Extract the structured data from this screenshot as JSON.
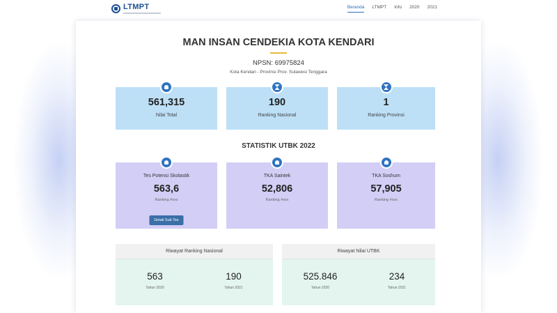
{
  "nav": {
    "logo_text": "LTMPT",
    "links": [
      "Beranda",
      "LTMPT",
      "Info",
      "2020",
      "2021"
    ]
  },
  "school": {
    "name": "MAN INSAN CENDEKIA KOTA KENDARI",
    "npsn": "NPSN: 69975824",
    "location": "Kota Kendari - Provinsi Prov. Sulawesi Tenggara"
  },
  "summary": [
    {
      "value": "561,315",
      "label": "Nilai Total",
      "icon": "user-icon"
    },
    {
      "value": "190",
      "label": "Ranking Nasional",
      "icon": "hourglass-icon"
    },
    {
      "value": "1",
      "label": "Ranking Provinsi",
      "icon": "hourglass-icon"
    }
  ],
  "utbk": {
    "title": "STATISTIK UTBK 2022",
    "cards": [
      {
        "title": "Tes Potensi Skolastik",
        "value": "563,6",
        "sub": "Ranking #xxx",
        "icon": "user-icon"
      },
      {
        "title": "TKA Saintek",
        "value": "52,806",
        "sub": "Ranking #xxx",
        "icon": "user-icon"
      },
      {
        "title": "TKA Soshum",
        "value": "57,905",
        "sub": "Ranking #xxx",
        "icon": "user-icon"
      }
    ],
    "detail_button": "Detail Sub Tes"
  },
  "history": {
    "ranking": {
      "title": "Riwayat Ranking Nasional",
      "items": [
        {
          "value": "563",
          "year": "Tahun 2020"
        },
        {
          "value": "190",
          "year": "Tahun 2021"
        }
      ]
    },
    "nilai": {
      "title": "Riwayat Nilai UTBK",
      "items": [
        {
          "value": "525.846",
          "year": "Tahun 2020"
        },
        {
          "value": "234",
          "year": "Tahun 2021"
        }
      ]
    }
  },
  "colors": {
    "accent": "#2f74c0",
    "summary_card": "#bde0f7",
    "utbk_card": "#d3cef6",
    "history_panel": "#e3f5ee",
    "underline": "#e5b93a"
  }
}
